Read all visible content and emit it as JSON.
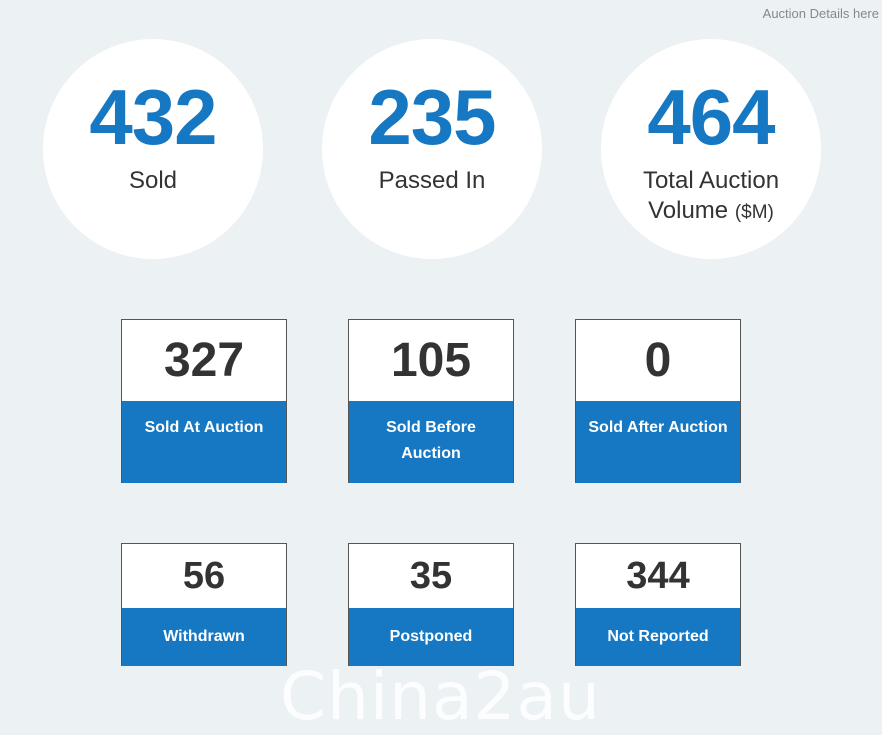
{
  "header": {
    "details_link": "Auction Details here"
  },
  "summary": {
    "sold": {
      "value": "432",
      "label": "Sold"
    },
    "passed_in": {
      "value": "235",
      "label": "Passed In"
    },
    "volume": {
      "value": "464",
      "label": "Total Auction Volume",
      "unit": "($M)"
    }
  },
  "breakdown": {
    "sold_at_auction": {
      "value": "327",
      "label": "Sold At Auction"
    },
    "sold_before_auction": {
      "value": "105",
      "label": "Sold Before Auction"
    },
    "sold_after_auction": {
      "value": "0",
      "label": "Sold After Auction"
    },
    "withdrawn": {
      "value": "56",
      "label": "Withdrawn"
    },
    "postponed": {
      "value": "35",
      "label": "Postponed"
    },
    "not_reported": {
      "value": "344",
      "label": "Not Reported"
    }
  },
  "watermark": "China2au",
  "colors": {
    "accent": "#1678c2",
    "background": "#ecf1f4"
  }
}
